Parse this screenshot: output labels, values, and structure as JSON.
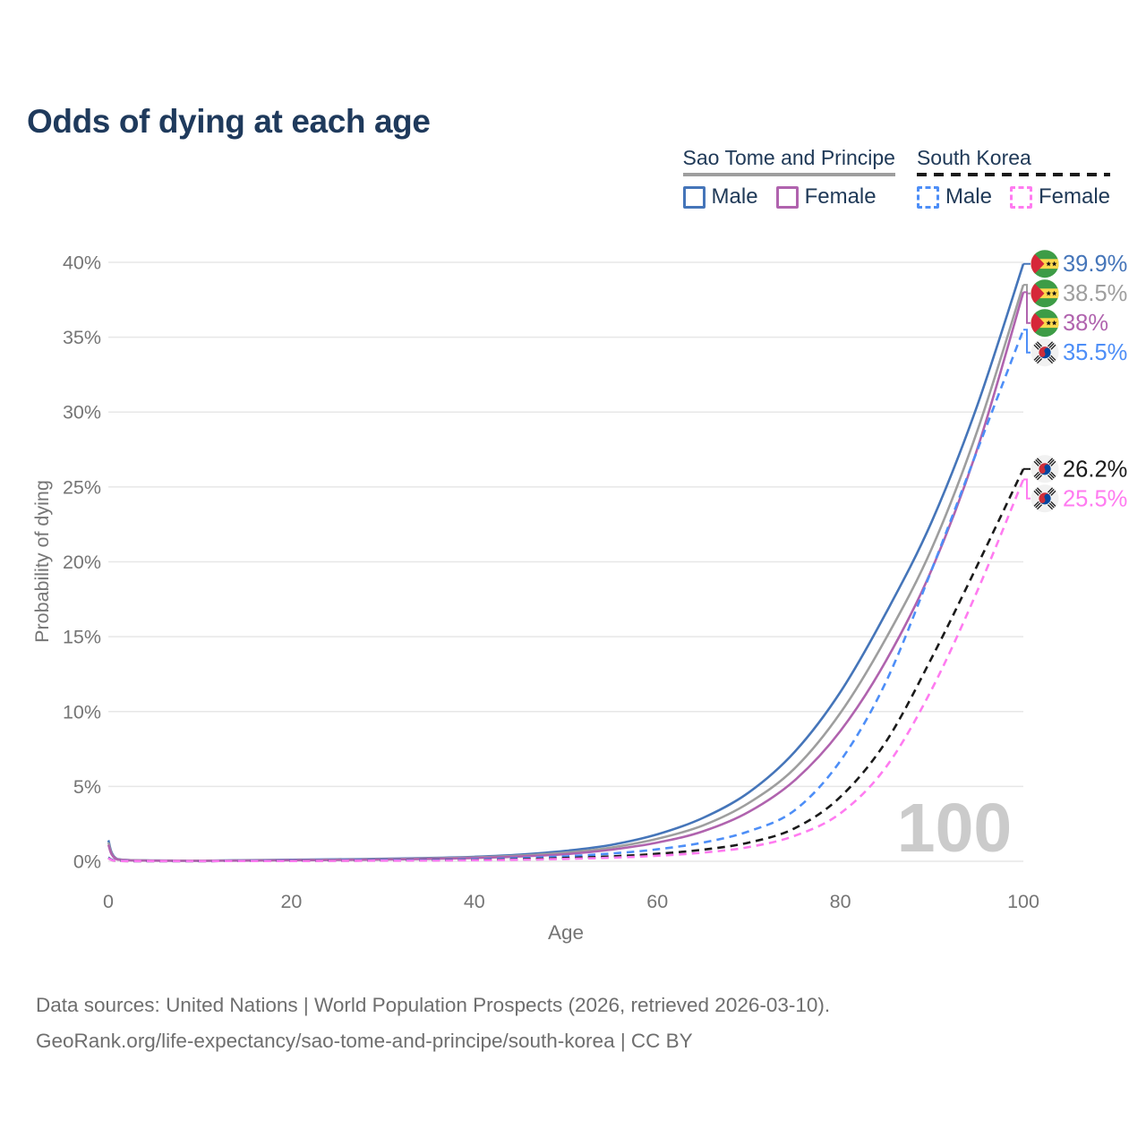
{
  "title": "Odds of dying at each age",
  "colors": {
    "title_text": "#1f3a5c",
    "legend_text": "#203a58",
    "axis_text": "#757575",
    "gridline": "#e7e7e7",
    "watermark": "#cbcbcb",
    "stp_male": "#4575b9",
    "stp_both": "#9e9e9e",
    "stp_female": "#b063ae",
    "kor_male": "#4d8ef7",
    "kor_both": "#1a1a1a",
    "kor_female": "#ff7bf0"
  },
  "legend": {
    "groups": [
      {
        "label": "Sao Tome and Principe",
        "underline_color": "#9e9e9e",
        "underline_style": "solid",
        "items": [
          {
            "label": "Male",
            "color": "#4575b9",
            "dashed": false
          },
          {
            "label": "Female",
            "color": "#b063ae",
            "dashed": false
          }
        ]
      },
      {
        "label": "South Korea",
        "underline_color": "#1a1a1a",
        "underline_style": "dashed",
        "items": [
          {
            "label": "Male",
            "color": "#4d8ef7",
            "dashed": true
          },
          {
            "label": "Female",
            "color": "#ff7bf0",
            "dashed": true
          }
        ]
      }
    ]
  },
  "chart_data": {
    "type": "line",
    "title": "Odds of dying at each age",
    "xlabel": "Age",
    "ylabel": "Probability of dying",
    "xlim": [
      0,
      100
    ],
    "ylim": [
      0,
      40
    ],
    "x_ticks": [
      0,
      20,
      40,
      60,
      80,
      100
    ],
    "y_tick_values": [
      0,
      5,
      10,
      15,
      20,
      25,
      30,
      35,
      40
    ],
    "y_tick_suffix": "%",
    "grid": "horizontal",
    "legend_position": "top-right",
    "watermark": "100",
    "x": [
      0,
      1,
      5,
      10,
      15,
      20,
      25,
      30,
      35,
      40,
      45,
      50,
      55,
      60,
      65,
      70,
      75,
      80,
      85,
      90,
      95,
      100
    ],
    "series": [
      {
        "name": "Sao Tome and Principe — Male",
        "country": "Sao Tome and Principe",
        "sex": "Male",
        "color": "#4575b9",
        "dashed": false,
        "flag": "st",
        "end_label": "39.9%",
        "values": [
          1.4,
          0.15,
          0.05,
          0.04,
          0.07,
          0.1,
          0.13,
          0.17,
          0.22,
          0.3,
          0.45,
          0.7,
          1.1,
          1.8,
          2.9,
          4.6,
          7.3,
          11.3,
          16.6,
          22.7,
          30.5,
          39.9
        ]
      },
      {
        "name": "Sao Tome and Principe — Both sexes",
        "country": "Sao Tome and Principe",
        "sex": "Both sexes",
        "color": "#9e9e9e",
        "dashed": false,
        "flag": "st",
        "end_label": "38.5%",
        "values": [
          1.25,
          0.13,
          0.05,
          0.04,
          0.06,
          0.08,
          0.11,
          0.14,
          0.19,
          0.26,
          0.38,
          0.58,
          0.92,
          1.5,
          2.4,
          3.9,
          6.2,
          9.9,
          14.9,
          20.9,
          28.8,
          38.5
        ]
      },
      {
        "name": "Sao Tome and Principe — Female",
        "country": "Sao Tome and Principe",
        "sex": "Female",
        "color": "#b063ae",
        "dashed": false,
        "flag": "st",
        "end_label": "38%",
        "values": [
          1.1,
          0.12,
          0.04,
          0.03,
          0.05,
          0.07,
          0.09,
          0.12,
          0.16,
          0.22,
          0.32,
          0.48,
          0.78,
          1.25,
          2.0,
          3.3,
          5.4,
          8.7,
          13.4,
          19.5,
          27.6,
          38.0
        ]
      },
      {
        "name": "South Korea — Male",
        "country": "South Korea",
        "sex": "Male",
        "color": "#4d8ef7",
        "dashed": true,
        "flag": "kr",
        "end_label": "35.5%",
        "values": [
          0.25,
          0.03,
          0.01,
          0.01,
          0.03,
          0.05,
          0.06,
          0.08,
          0.1,
          0.14,
          0.21,
          0.33,
          0.52,
          0.8,
          1.25,
          2.0,
          3.4,
          6.7,
          12.0,
          19.5,
          27.5,
          35.5
        ]
      },
      {
        "name": "South Korea — Both sexes",
        "country": "South Korea",
        "sex": "Both sexes",
        "color": "#1a1a1a",
        "dashed": true,
        "flag": "kr",
        "end_label": "26.2%",
        "values": [
          0.22,
          0.02,
          0.01,
          0.01,
          0.02,
          0.03,
          0.04,
          0.05,
          0.07,
          0.09,
          0.14,
          0.22,
          0.33,
          0.5,
          0.78,
          1.25,
          2.2,
          4.3,
          8.0,
          13.6,
          19.8,
          26.2
        ]
      },
      {
        "name": "South Korea — Female",
        "country": "South Korea",
        "sex": "Female",
        "color": "#ff7bf0",
        "dashed": true,
        "flag": "kr",
        "end_label": "25.5%",
        "values": [
          0.2,
          0.02,
          0.01,
          0.01,
          0.02,
          0.02,
          0.03,
          0.04,
          0.05,
          0.07,
          0.1,
          0.16,
          0.24,
          0.37,
          0.58,
          0.95,
          1.7,
          3.2,
          6.3,
          11.5,
          18.1,
          25.5
        ]
      }
    ]
  },
  "footer": {
    "line1": "Data sources: United Nations | World Population Prospects (2026, retrieved 2026-03-10).",
    "line2": "GeoRank.org/life-expectancy/sao-tome-and-principe/south-korea | CC BY"
  }
}
